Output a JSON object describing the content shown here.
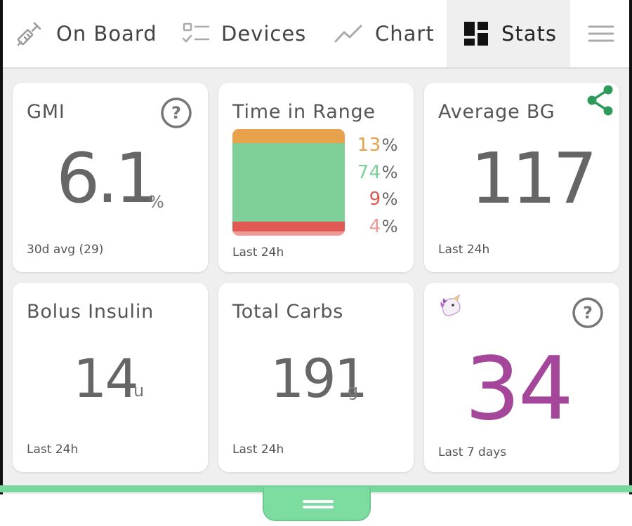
{
  "nav": {
    "tabs": [
      {
        "label": "On Board",
        "icon": "syringe-icon"
      },
      {
        "label": "Devices",
        "icon": "checklist-icon"
      },
      {
        "label": "Chart",
        "icon": "trend-line-icon"
      },
      {
        "label": "Stats",
        "icon": "dashboard-icon",
        "active": true
      }
    ],
    "menu_icon": "hamburger-menu-icon"
  },
  "cards": {
    "gmi": {
      "title": "GMI",
      "value": "6.1",
      "unit": "%",
      "footer": "30d avg (29)",
      "icon": "help-icon"
    },
    "time_in_range": {
      "title": "Time in Range",
      "footer": "Last 24h",
      "ranges": [
        {
          "value": "13",
          "unit": "%",
          "color": "#e8a24c"
        },
        {
          "value": "74",
          "unit": "%",
          "color": "#7ecf98"
        },
        {
          "value": "9",
          "unit": "%",
          "color": "#e05a55"
        },
        {
          "value": "4",
          "unit": "%",
          "color": "#ee9a96"
        }
      ]
    },
    "average_bg": {
      "title": "Average BG",
      "value": "117",
      "footer": "Last 24h",
      "icon": "share-icon"
    },
    "bolus_insulin": {
      "title": "Bolus Insulin",
      "value": "14",
      "unit": "u",
      "footer": "Last 24h"
    },
    "total_carbs": {
      "title": "Total Carbs",
      "value": "191",
      "unit": "g",
      "footer": "Last 24h"
    },
    "unicorn": {
      "emoji": "🦄",
      "value": "34",
      "footer": "Last 7 days",
      "icon": "help-icon",
      "value_color": "#a4479a"
    }
  },
  "drawer": {
    "icon": "drag-handle-icon"
  },
  "colors": {
    "accent": "#7ddc9f",
    "share": "#2e9a5c"
  }
}
